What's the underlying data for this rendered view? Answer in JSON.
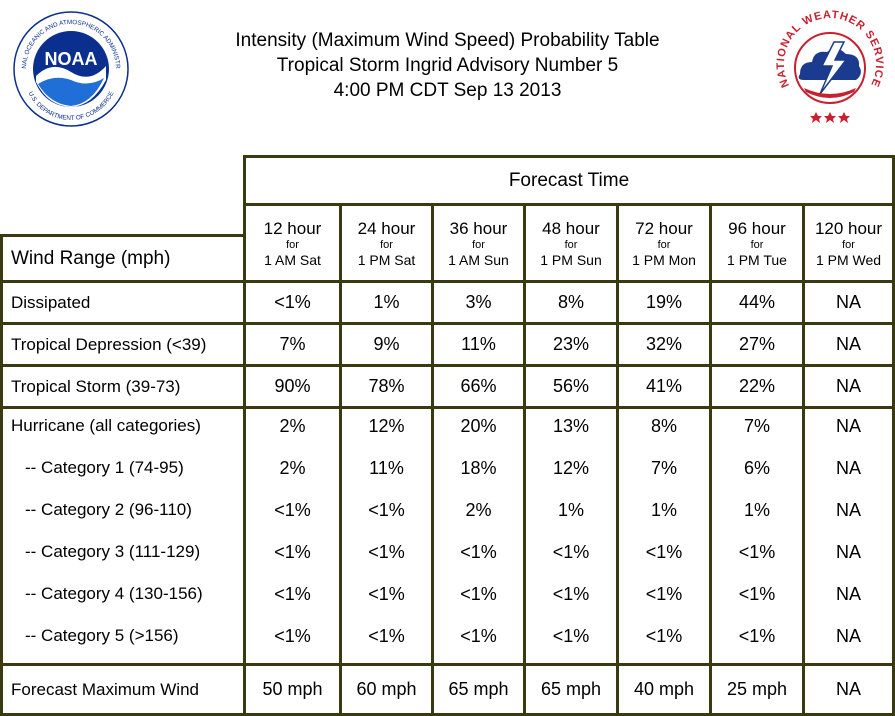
{
  "title_lines": [
    "Intensity (Maximum Wind Speed) Probability Table",
    "Tropical Storm Ingrid Advisory Number 5",
    "4:00 PM CDT Sep 13 2013"
  ],
  "logos": {
    "noaa": {
      "text": "NOAA",
      "ring_top": "NATIONAL OCEANIC AND ATMOSPHERIC ADMINISTRATION",
      "ring_bottom": "U.S. DEPARTMENT OF COMMERCE"
    },
    "nws": {
      "ring": "NATIONAL WEATHER SERVICE"
    }
  },
  "colors": {
    "frame": "#3a3a12",
    "noaa_blue": "#0b2f8f",
    "nws_red": "#c8202f"
  },
  "table": {
    "forecast_time_label": "Forecast Time",
    "wind_range_label": "Wind Range (mph)",
    "columns": [
      {
        "hours": "12 hour",
        "for": "for",
        "when": "1 AM Sat"
      },
      {
        "hours": "24 hour",
        "for": "for",
        "when": "1 PM Sat"
      },
      {
        "hours": "36 hour",
        "for": "for",
        "when": "1 AM Sun"
      },
      {
        "hours": "48 hour",
        "for": "for",
        "when": "1 PM Sun"
      },
      {
        "hours": "72 hour",
        "for": "for",
        "when": "1 PM Mon"
      },
      {
        "hours": "96 hour",
        "for": "for",
        "when": "1 PM Tue"
      },
      {
        "hours": "120 hour",
        "for": "for",
        "when": "1 PM Wed"
      }
    ],
    "rows_a": [
      {
        "label": "Dissipated",
        "values": [
          "<1%",
          "1%",
          "3%",
          "8%",
          "19%",
          "44%",
          "NA"
        ]
      },
      {
        "label": "Tropical Depression (<39)",
        "values": [
          "7%",
          "9%",
          "11%",
          "23%",
          "32%",
          "27%",
          "NA"
        ]
      },
      {
        "label": "Tropical Storm (39-73)",
        "values": [
          "90%",
          "78%",
          "66%",
          "56%",
          "41%",
          "22%",
          "NA"
        ]
      }
    ],
    "rows_h": [
      {
        "label": "Hurricane (all categories)",
        "values": [
          "2%",
          "12%",
          "20%",
          "13%",
          "8%",
          "7%",
          "NA"
        ]
      },
      {
        "label": "-- Category 1 (74-95)",
        "values": [
          "2%",
          "11%",
          "18%",
          "12%",
          "7%",
          "6%",
          "NA"
        ]
      },
      {
        "label": "-- Category 2 (96-110)",
        "values": [
          "<1%",
          "<1%",
          "2%",
          "1%",
          "1%",
          "1%",
          "NA"
        ]
      },
      {
        "label": "-- Category 3 (111-129)",
        "values": [
          "<1%",
          "<1%",
          "<1%",
          "<1%",
          "<1%",
          "<1%",
          "NA"
        ]
      },
      {
        "label": "-- Category 4 (130-156)",
        "values": [
          "<1%",
          "<1%",
          "<1%",
          "<1%",
          "<1%",
          "<1%",
          "NA"
        ]
      },
      {
        "label": "-- Category 5 (>156)",
        "values": [
          "<1%",
          "<1%",
          "<1%",
          "<1%",
          "<1%",
          "<1%",
          "NA"
        ]
      }
    ],
    "max_wind": {
      "label": "Forecast Maximum Wind",
      "values": [
        "50 mph",
        "60 mph",
        "65 mph",
        "65 mph",
        "40 mph",
        "25 mph",
        "NA"
      ]
    }
  }
}
